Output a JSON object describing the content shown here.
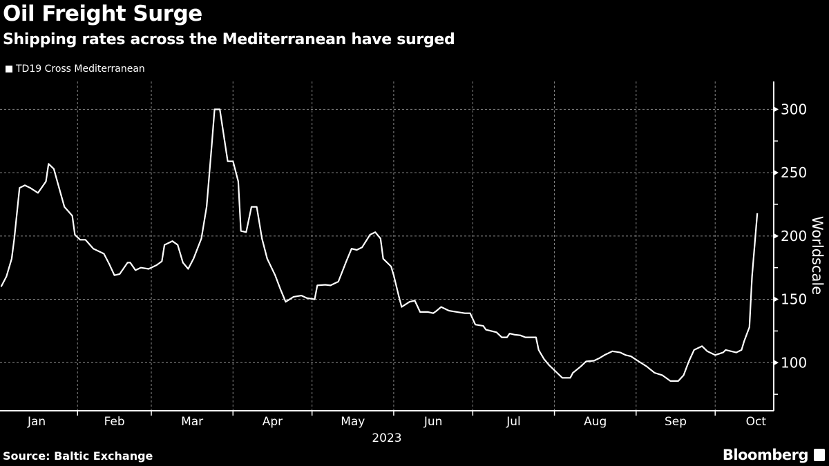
{
  "chart_data": {
    "type": "line",
    "title": "Oil Freight Surge",
    "subtitle": "Shipping rates across the Mediterranean have surged",
    "ylabel": "Worldscale",
    "xlabel": "2023",
    "ylim": [
      62,
      322
    ],
    "yticks": [
      100,
      150,
      200,
      250,
      300
    ],
    "xticks": [
      "Jan",
      "Feb",
      "Mar",
      "Apr",
      "May",
      "Jun",
      "Jul",
      "Aug",
      "Sep",
      "Oct"
    ],
    "grid": true,
    "legend_position": "top-left",
    "series": [
      {
        "name": "TD19 Cross Mediterranean",
        "color": "#ffffff",
        "points": [
          [
            "2023-01-03",
            160
          ],
          [
            "2023-01-05",
            168
          ],
          [
            "2023-01-07",
            182
          ],
          [
            "2023-01-08",
            198
          ],
          [
            "2023-01-10",
            238
          ],
          [
            "2023-01-12",
            240
          ],
          [
            "2023-01-14",
            238
          ],
          [
            "2023-01-17",
            234
          ],
          [
            "2023-01-20",
            243
          ],
          [
            "2023-01-21",
            257
          ],
          [
            "2023-01-23",
            253
          ],
          [
            "2023-01-25",
            238
          ],
          [
            "2023-01-27",
            223
          ],
          [
            "2023-01-30",
            216
          ],
          [
            "2023-01-31",
            201
          ],
          [
            "2023-02-02",
            197
          ],
          [
            "2023-02-04",
            197
          ],
          [
            "2023-02-07",
            190
          ],
          [
            "2023-02-11",
            186
          ],
          [
            "2023-02-13",
            178
          ],
          [
            "2023-02-15",
            169
          ],
          [
            "2023-02-17",
            170
          ],
          [
            "2023-02-20",
            179
          ],
          [
            "2023-02-21",
            179
          ],
          [
            "2023-02-23",
            173
          ],
          [
            "2023-02-25",
            175
          ],
          [
            "2023-02-28",
            174
          ],
          [
            "2023-03-03",
            177
          ],
          [
            "2023-03-05",
            180
          ],
          [
            "2023-03-06",
            193
          ],
          [
            "2023-03-09",
            196
          ],
          [
            "2023-03-11",
            193
          ],
          [
            "2023-03-13",
            179
          ],
          [
            "2023-03-15",
            174
          ],
          [
            "2023-03-17",
            182
          ],
          [
            "2023-03-20",
            198
          ],
          [
            "2023-03-22",
            223
          ],
          [
            "2023-03-24",
            273
          ],
          [
            "2023-03-25",
            300
          ],
          [
            "2023-03-27",
            300
          ],
          [
            "2023-03-30",
            259
          ],
          [
            "2023-04-01",
            259
          ],
          [
            "2023-04-03",
            243
          ],
          [
            "2023-04-04",
            204
          ],
          [
            "2023-04-06",
            203
          ],
          [
            "2023-04-08",
            223
          ],
          [
            "2023-04-10",
            223
          ],
          [
            "2023-04-12",
            198
          ],
          [
            "2023-04-14",
            182
          ],
          [
            "2023-04-17",
            169
          ],
          [
            "2023-04-19",
            158
          ],
          [
            "2023-04-21",
            148
          ],
          [
            "2023-04-24",
            152
          ],
          [
            "2023-04-27",
            153
          ],
          [
            "2023-04-29",
            151
          ],
          [
            "2023-05-02",
            150
          ],
          [
            "2023-05-03",
            161
          ],
          [
            "2023-05-06",
            161.5
          ],
          [
            "2023-05-08",
            161
          ],
          [
            "2023-05-11",
            164
          ],
          [
            "2023-05-14",
            180
          ],
          [
            "2023-05-16",
            190
          ],
          [
            "2023-05-18",
            189
          ],
          [
            "2023-05-20",
            191
          ],
          [
            "2023-05-23",
            201
          ],
          [
            "2023-05-25",
            203
          ],
          [
            "2023-05-27",
            198
          ],
          [
            "2023-05-28",
            182
          ],
          [
            "2023-05-31",
            176
          ],
          [
            "2023-06-01",
            169
          ],
          [
            "2023-06-03",
            152
          ],
          [
            "2023-06-04",
            144
          ],
          [
            "2023-06-07",
            148
          ],
          [
            "2023-06-09",
            149
          ],
          [
            "2023-06-11",
            140
          ],
          [
            "2023-06-14",
            140
          ],
          [
            "2023-06-16",
            139
          ],
          [
            "2023-06-17",
            140.5
          ],
          [
            "2023-06-19",
            144
          ],
          [
            "2023-06-22",
            141
          ],
          [
            "2023-06-25",
            140
          ],
          [
            "2023-06-28",
            139
          ],
          [
            "2023-06-30",
            139
          ],
          [
            "2023-07-02",
            130
          ],
          [
            "2023-07-05",
            129
          ],
          [
            "2023-07-06",
            126
          ],
          [
            "2023-07-10",
            124
          ],
          [
            "2023-07-12",
            120
          ],
          [
            "2023-07-14",
            120
          ],
          [
            "2023-07-15",
            123
          ],
          [
            "2023-07-17",
            122
          ],
          [
            "2023-07-19",
            121.6
          ],
          [
            "2023-07-21",
            120
          ],
          [
            "2023-07-25",
            120
          ],
          [
            "2023-07-26",
            110
          ],
          [
            "2023-07-28",
            103
          ],
          [
            "2023-07-30",
            98
          ],
          [
            "2023-08-02",
            92
          ],
          [
            "2023-08-04",
            88
          ],
          [
            "2023-08-07",
            88
          ],
          [
            "2023-08-08",
            92
          ],
          [
            "2023-08-11",
            97
          ],
          [
            "2023-08-13",
            101
          ],
          [
            "2023-08-16",
            101.5
          ],
          [
            "2023-08-18",
            103.5
          ],
          [
            "2023-08-20",
            106
          ],
          [
            "2023-08-23",
            109
          ],
          [
            "2023-08-26",
            108
          ],
          [
            "2023-08-28",
            106
          ],
          [
            "2023-08-30",
            105
          ],
          [
            "2023-09-02",
            101
          ],
          [
            "2023-09-05",
            97
          ],
          [
            "2023-09-08",
            92
          ],
          [
            "2023-09-11",
            90
          ],
          [
            "2023-09-14",
            85.5
          ],
          [
            "2023-09-17",
            85.5
          ],
          [
            "2023-09-19",
            90
          ],
          [
            "2023-09-21",
            101
          ],
          [
            "2023-09-23",
            110
          ],
          [
            "2023-09-26",
            113
          ],
          [
            "2023-09-28",
            109
          ],
          [
            "2023-10-01",
            106
          ],
          [
            "2023-10-04",
            108
          ],
          [
            "2023-10-05",
            110
          ],
          [
            "2023-10-09",
            108
          ],
          [
            "2023-10-11",
            110
          ],
          [
            "2023-10-12",
            117
          ],
          [
            "2023-10-14",
            128
          ],
          [
            "2023-10-15",
            168
          ],
          [
            "2023-10-17",
            218
          ]
        ]
      }
    ]
  },
  "footer": {
    "source": "Source: Baltic Exchange",
    "brand": "Bloomberg"
  }
}
